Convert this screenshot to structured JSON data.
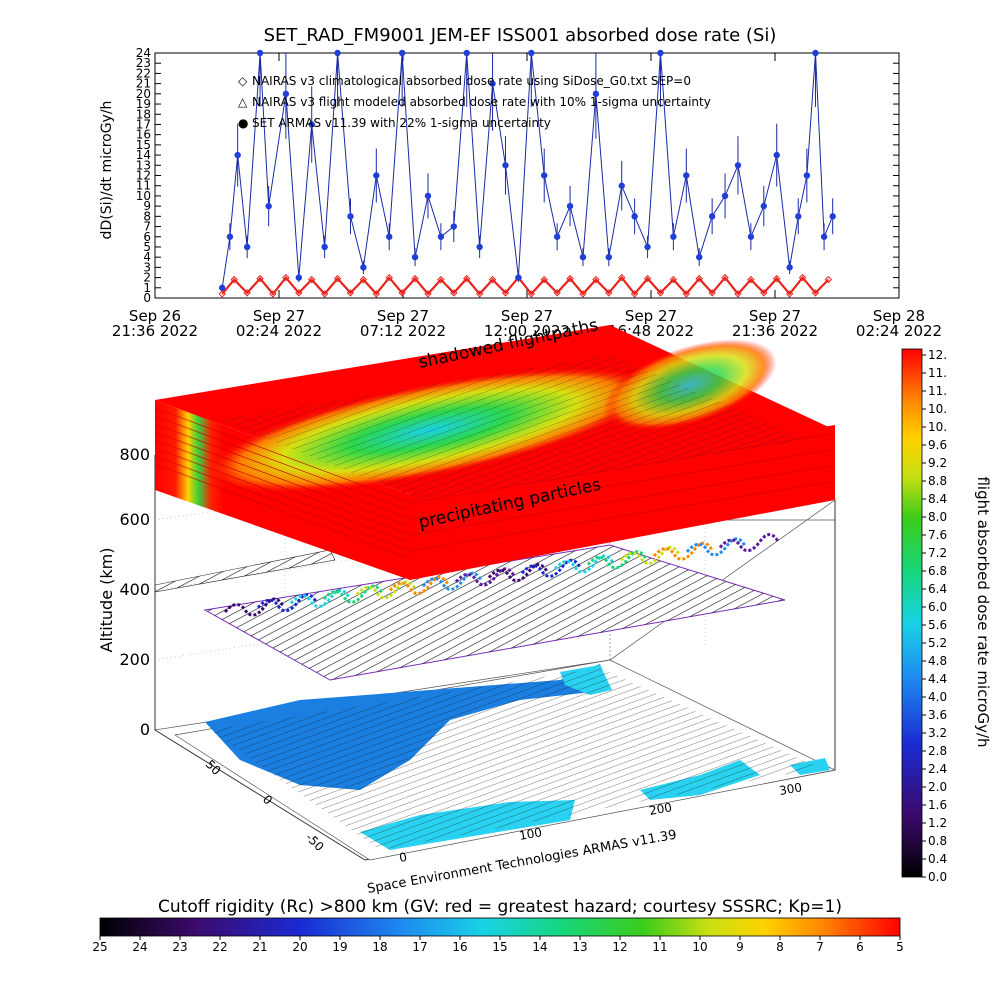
{
  "chart_data": [
    {
      "type": "scatter",
      "title": "SET_RAD_FM9001  JEM-EF ISS001 absorbed dose rate (Si)",
      "ylabel": "dD(Si)/dt microGy/h",
      "ylim": [
        0,
        24
      ],
      "y_ticks": [
        "0",
        "1",
        "2",
        "3",
        "4",
        "5",
        "6",
        "7",
        "8",
        "9",
        "10",
        "11",
        "12",
        "13",
        "14",
        "15",
        "16",
        "17",
        "18",
        "19",
        "20",
        "21",
        "22",
        "23",
        "24"
      ],
      "x_ticks": [
        {
          "date": "Sep 26",
          "time": "21:36 2022"
        },
        {
          "date": "Sep 27",
          "time": "02:24 2022"
        },
        {
          "date": "Sep 27",
          "time": "07:12 2022"
        },
        {
          "date": "Sep 27",
          "time": "12:00 2022"
        },
        {
          "date": "Sep 27",
          "time": "16:48 2022"
        },
        {
          "date": "Sep 27",
          "time": "21:36 2022"
        },
        {
          "date": "Sep 28",
          "time": "02:24 2022"
        }
      ],
      "legend": [
        {
          "marker": "◇",
          "color": "#e8231c",
          "label": "NAIRAS v3 climatological absorbed dose rate using SiDose_G0.txt SEP=0"
        },
        {
          "marker": "△",
          "color": "#000000",
          "label": "NAIRAS v3 flight modeled absorbed dose rate with 10% 1-sigma uncertainty"
        },
        {
          "marker": "●",
          "color": "#1f3fd6",
          "label": "SET ARMAS v11.39 with 22% 1-sigma uncertainty"
        }
      ],
      "legend_position": "top-left",
      "series": [
        {
          "name": "SET ARMAS v11.39 with 22% 1-sigma uncertainty",
          "x": [
            "2022-09-27T00:12",
            "2022-09-27T00:30",
            "2022-09-27T00:48",
            "2022-09-27T01:10",
            "2022-09-27T01:40",
            "2022-09-27T02:00",
            "2022-09-27T02:40",
            "2022-09-27T03:10",
            "2022-09-27T03:40",
            "2022-09-27T04:10",
            "2022-09-27T04:40",
            "2022-09-27T05:10",
            "2022-09-27T05:40",
            "2022-09-27T06:10",
            "2022-09-27T06:40",
            "2022-09-27T07:10",
            "2022-09-27T07:40",
            "2022-09-27T08:10",
            "2022-09-27T08:40",
            "2022-09-27T09:10",
            "2022-09-27T09:40",
            "2022-09-27T10:10",
            "2022-09-27T10:40",
            "2022-09-27T11:10",
            "2022-09-27T11:40",
            "2022-09-27T12:10",
            "2022-09-27T12:40",
            "2022-09-27T13:10",
            "2022-09-27T13:40",
            "2022-09-27T14:10",
            "2022-09-27T14:40",
            "2022-09-27T15:10",
            "2022-09-27T15:40",
            "2022-09-27T16:10",
            "2022-09-27T16:40",
            "2022-09-27T17:10",
            "2022-09-27T17:40",
            "2022-09-27T18:10",
            "2022-09-27T18:40",
            "2022-09-27T19:10",
            "2022-09-27T19:40",
            "2022-09-27T20:10",
            "2022-09-27T20:40",
            "2022-09-27T21:10",
            "2022-09-27T21:40",
            "2022-09-27T22:10",
            "2022-09-27T22:30",
            "2022-09-27T22:50",
            "2022-09-27T23:10",
            "2022-09-27T23:30",
            "2022-09-27T23:50"
          ],
          "y": [
            1,
            6,
            14,
            5,
            24,
            9,
            20,
            2,
            17,
            5,
            24,
            8,
            3,
            12,
            6,
            24,
            4,
            10,
            6,
            7,
            24,
            5,
            21,
            13,
            2,
            24,
            12,
            6,
            9,
            4,
            20,
            4,
            11,
            8,
            5,
            24,
            6,
            12,
            4,
            8,
            10,
            13,
            6,
            9,
            14,
            3,
            8,
            12,
            24,
            6,
            8
          ]
        },
        {
          "name": "NAIRAS v3 climatological absorbed dose rate using SiDose_G0.txt SEP=0",
          "x": [
            "2022-09-27T00:12",
            "2022-09-27T00:40",
            "2022-09-27T01:10",
            "2022-09-27T01:40",
            "2022-09-27T02:10",
            "2022-09-27T02:40",
            "2022-09-27T03:10",
            "2022-09-27T03:40",
            "2022-09-27T04:10",
            "2022-09-27T04:40",
            "2022-09-27T05:10",
            "2022-09-27T05:40",
            "2022-09-27T06:10",
            "2022-09-27T06:40",
            "2022-09-27T07:10",
            "2022-09-27T07:40",
            "2022-09-27T08:10",
            "2022-09-27T08:40",
            "2022-09-27T09:10",
            "2022-09-27T09:40",
            "2022-09-27T10:10",
            "2022-09-27T10:40",
            "2022-09-27T11:10",
            "2022-09-27T11:40",
            "2022-09-27T12:10",
            "2022-09-27T12:40",
            "2022-09-27T13:10",
            "2022-09-27T13:40",
            "2022-09-27T14:10",
            "2022-09-27T14:40",
            "2022-09-27T15:10",
            "2022-09-27T15:40",
            "2022-09-27T16:10",
            "2022-09-27T16:40",
            "2022-09-27T17:10",
            "2022-09-27T17:40",
            "2022-09-27T18:10",
            "2022-09-27T18:40",
            "2022-09-27T19:10",
            "2022-09-27T19:40",
            "2022-09-27T20:10",
            "2022-09-27T20:40",
            "2022-09-27T21:10",
            "2022-09-27T21:40",
            "2022-09-27T22:10",
            "2022-09-27T22:40",
            "2022-09-27T23:10",
            "2022-09-27T23:40"
          ],
          "y": [
            0.4,
            1.8,
            0.5,
            1.9,
            0.4,
            2.0,
            0.5,
            1.8,
            0.4,
            1.9,
            0.5,
            1.8,
            0.4,
            2.0,
            0.5,
            1.9,
            0.4,
            1.8,
            0.5,
            1.9,
            0.4,
            1.8,
            0.5,
            2.0,
            0.4,
            1.8,
            0.5,
            1.9,
            0.4,
            1.8,
            0.5,
            2.0,
            0.4,
            1.9,
            0.5,
            1.8,
            0.4,
            1.9,
            0.5,
            2.0,
            0.4,
            1.8,
            0.5,
            1.9,
            0.4,
            2.0,
            0.5,
            1.8
          ]
        }
      ]
    },
    {
      "type": "other",
      "description_free": true,
      "zlabel": "Altitude (km)",
      "z_ticks": [
        "0",
        "200",
        "400",
        "600",
        "800"
      ],
      "lat_ticks": [
        "-50",
        "0",
        "50"
      ],
      "lon_ticks": [
        "0",
        "100",
        "200",
        "300"
      ],
      "annotations": [
        "shadowed flightpaths",
        "precipitating particles"
      ],
      "credit": "Space Environment Technologies ARMAS v11.39"
    },
    {
      "type": "heatmap",
      "role": "colorbar",
      "label": "flight absorbed dose rate microGy/h",
      "ticks": [
        "12.",
        "11.",
        "11.",
        "10.",
        "10.",
        "9.6",
        "9.2",
        "8.8",
        "8.4",
        "8.0",
        "7.6",
        "7.2",
        "6.8",
        "6.4",
        "6.0",
        "5.6",
        "5.2",
        "4.8",
        "4.4",
        "4.0",
        "3.6",
        "3.2",
        "2.8",
        "2.4",
        "2.0",
        "1.6",
        "1.2",
        "0.8",
        "0.4",
        "0.0"
      ]
    },
    {
      "type": "heatmap",
      "role": "colorbar",
      "label": "Cutoff rigidity (Rc) >800 km (GV: red = greatest hazard; courtesy SSSRC; Kp=1)",
      "ticks": [
        "25",
        "24",
        "23",
        "22",
        "21",
        "20",
        "19",
        "18",
        "17",
        "16",
        "15",
        "14",
        "13",
        "12",
        "11",
        "10",
        "9",
        "8",
        "7",
        "6",
        "5"
      ]
    }
  ]
}
